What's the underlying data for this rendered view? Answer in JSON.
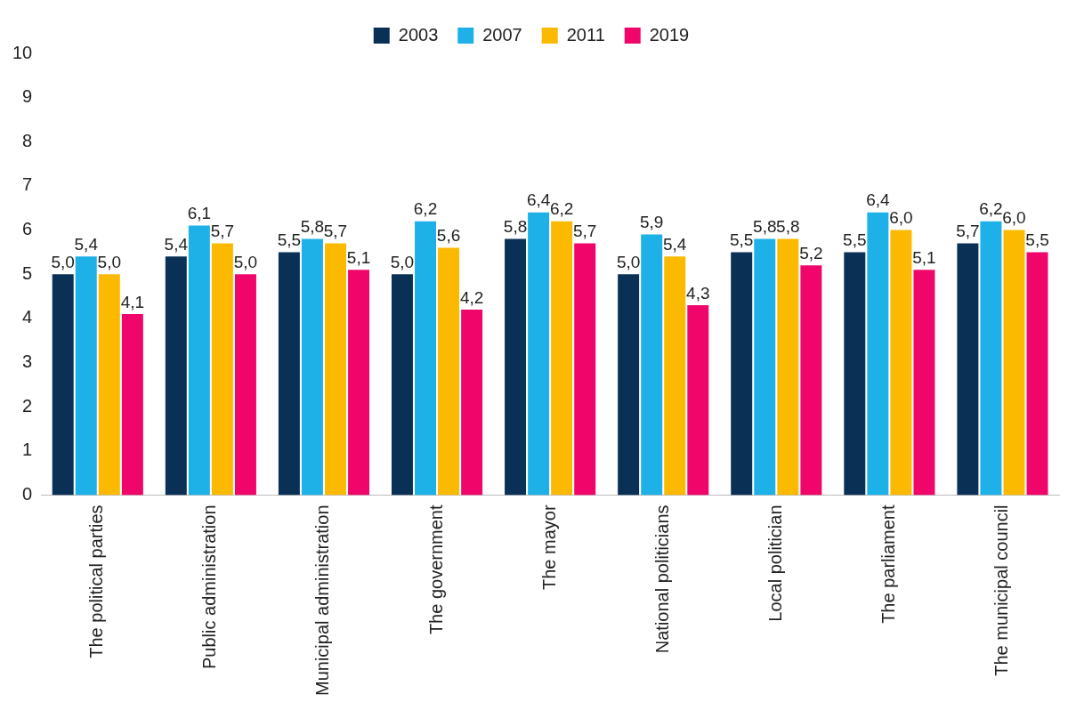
{
  "chart_data": {
    "type": "bar",
    "categories": [
      "The political parties",
      "Public administration",
      "Municipal administration",
      "The government",
      "The mayor",
      "National politicians",
      "Local politician",
      "The parliament",
      "The municipal council"
    ],
    "series": [
      {
        "name": "2003",
        "color": "#0a3055",
        "values": [
          5.0,
          5.4,
          5.5,
          5.0,
          5.8,
          5.0,
          5.5,
          5.5,
          5.7
        ],
        "value_labels": [
          "5,0",
          "5,4",
          "5,5",
          "5,0",
          "5,8",
          "5,0",
          "5,5",
          "5,5",
          "5,7"
        ]
      },
      {
        "name": "2007",
        "color": "#1eb1e8",
        "values": [
          5.4,
          6.1,
          5.8,
          6.2,
          6.4,
          5.9,
          5.8,
          6.4,
          6.2
        ],
        "value_labels": [
          "5,4",
          "6,1",
          "5,8",
          "6,2",
          "6,4",
          "5,9",
          "5,8",
          "6,4",
          "6,2"
        ]
      },
      {
        "name": "2011",
        "color": "#fbb900",
        "values": [
          5.0,
          5.7,
          5.7,
          5.6,
          6.2,
          5.4,
          5.8,
          6.0,
          6.0
        ],
        "value_labels": [
          "5,0",
          "5,7",
          "5,7",
          "5,6",
          "6,2",
          "5,4",
          "5,8",
          "6,0",
          "6,0"
        ]
      },
      {
        "name": "2019",
        "color": "#f0066b",
        "values": [
          4.1,
          5.0,
          5.1,
          4.2,
          5.7,
          4.3,
          5.2,
          5.1,
          5.5
        ],
        "value_labels": [
          "4,1",
          "5,0",
          "5,1",
          "4,2",
          "5,7",
          "4,3",
          "5,2",
          "5,1",
          "5,5"
        ]
      }
    ],
    "ylim": [
      0,
      10
    ],
    "yticks": [
      0,
      1,
      2,
      3,
      4,
      5,
      6,
      7,
      8,
      9,
      10
    ],
    "grid": false,
    "legend": "top",
    "data_labels": true
  }
}
